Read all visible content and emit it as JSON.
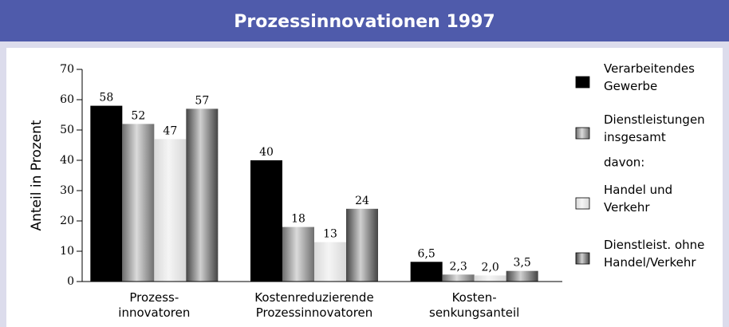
{
  "chart_data": {
    "type": "bar",
    "title": "Prozessinnovationen 1997",
    "y_label": "Anteil in Prozent",
    "categories": [
      "Prozess-\ninnovatoren",
      "Kostenreduzierende\nProzessinnovatoren",
      "Kosten-\nsenkungsanteil"
    ],
    "series": [
      {
        "name": "Verarbeitendes\nGewerbe",
        "color": "#000000",
        "gradient": false,
        "values": [
          58,
          40,
          6.5
        ],
        "value_labels": [
          "58",
          "40",
          "6,5"
        ]
      },
      {
        "name": "Dienstleistungen\ninsgesamt",
        "color": "#6e6e6e",
        "gradient": true,
        "values": [
          52,
          18,
          2.3
        ],
        "value_labels": [
          "52",
          "18",
          "2,3"
        ]
      },
      {
        "name": "Handel und\nVerkehr",
        "color": "#d8d8d8",
        "gradient": true,
        "values": [
          47,
          13,
          2.0
        ],
        "value_labels": [
          "47",
          "13",
          "2,0"
        ]
      },
      {
        "name": "Dienstleist. ohne\nHandel/Verkehr",
        "color": "#444444",
        "gradient": true,
        "values": [
          57,
          24,
          3.5
        ],
        "value_labels": [
          "57",
          "24",
          "3,5"
        ]
      }
    ],
    "legend_note": "davon:",
    "legend": "right",
    "ylim": [
      0,
      70
    ],
    "yticks": [
      0,
      10,
      20,
      30,
      40,
      50,
      60,
      70
    ]
  }
}
